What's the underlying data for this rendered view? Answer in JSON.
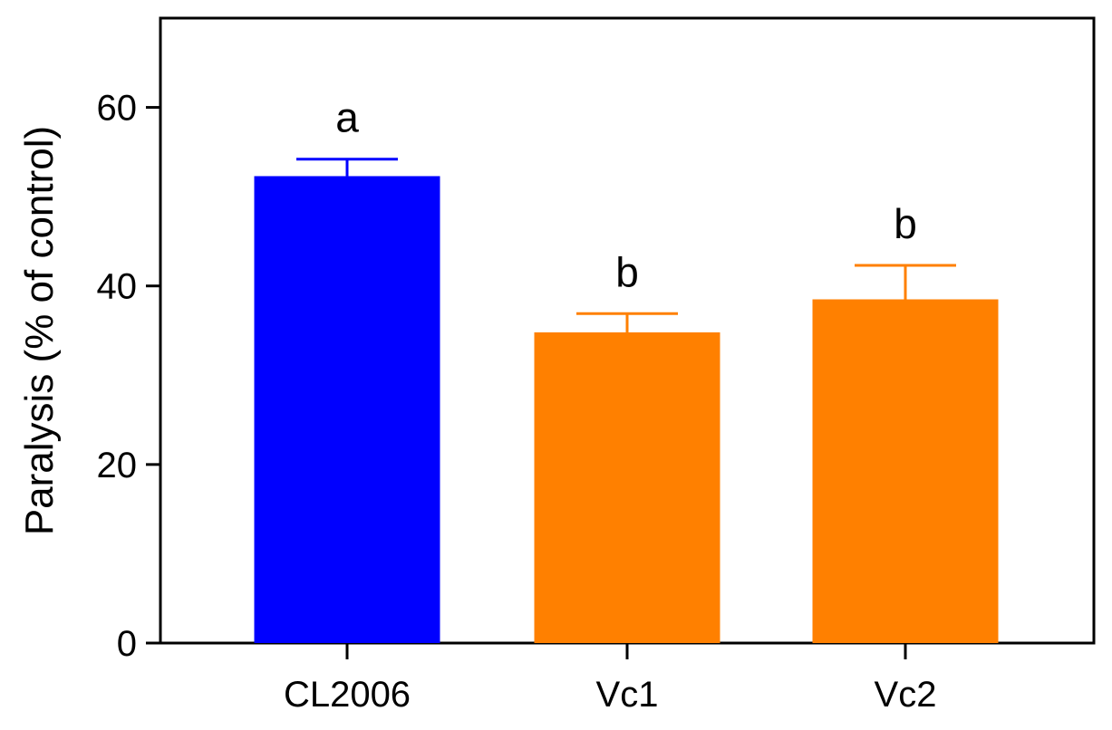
{
  "chart_data": {
    "type": "bar",
    "title": "",
    "xlabel": "",
    "ylabel": "Paralysis (% of control)",
    "ylim": [
      0,
      70
    ],
    "yticks": [
      0,
      20,
      40,
      60
    ],
    "grid": false,
    "categories": [
      "CL2006",
      "Vc1",
      "Vc2"
    ],
    "values": [
      52.3,
      34.8,
      38.5
    ],
    "errors": [
      1.9,
      2.1,
      3.8
    ],
    "significance": [
      "a",
      "b",
      "b"
    ],
    "colors": [
      "#0000ff",
      "#ff8000",
      "#ff8000"
    ]
  }
}
